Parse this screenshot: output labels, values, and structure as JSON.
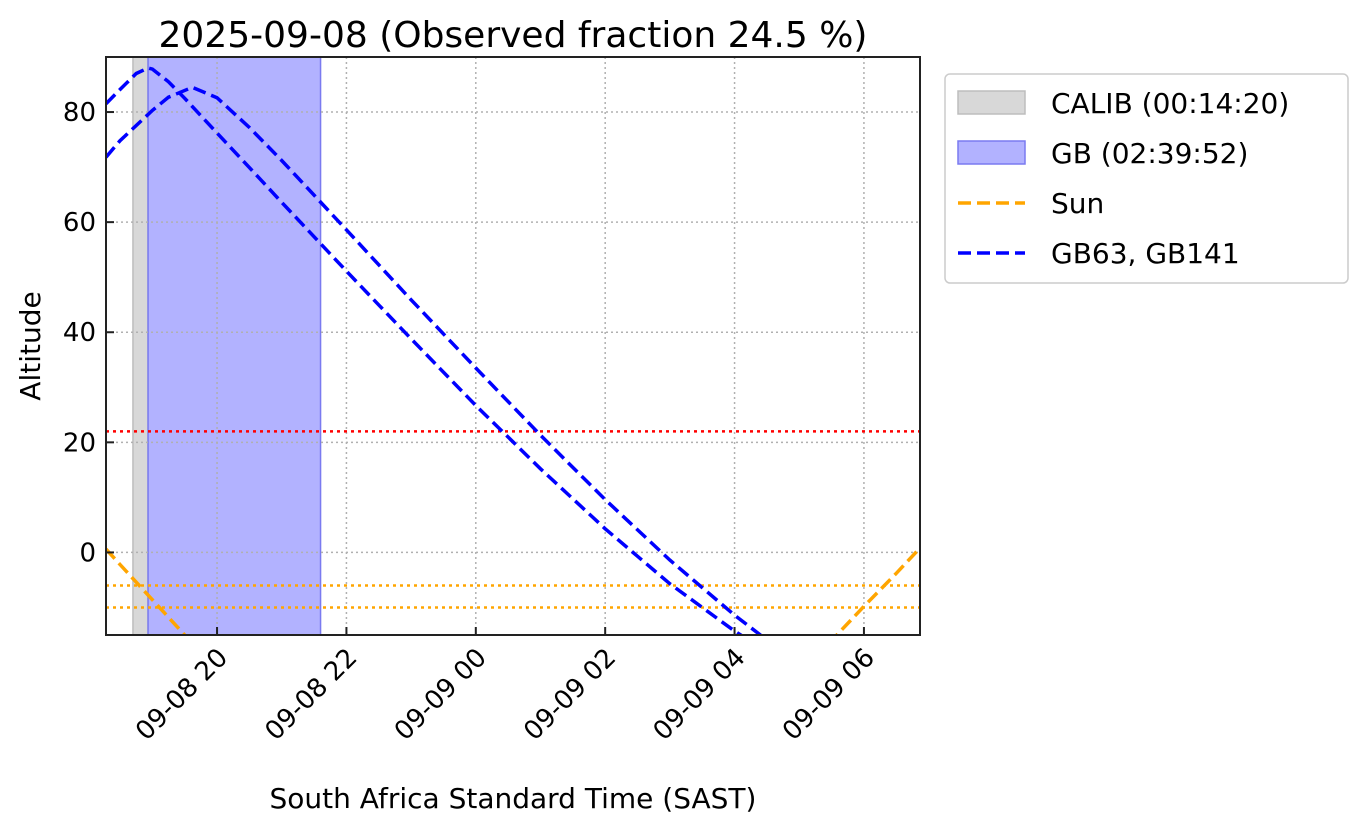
{
  "chart_data": {
    "type": "line",
    "title": "2025-09-08 (Observed fraction 24.5 %)",
    "xlabel": "South Africa Standard Time (SAST)",
    "ylabel": "Altitude",
    "xlim": [
      "2025-09-08 18:17",
      "2025-09-09 06:52"
    ],
    "ylim": [
      -15,
      90
    ],
    "grid": true,
    "legend_position": "outside-top-right",
    "x_ticks": [
      {
        "t": "2025-09-08 20:00",
        "label": "09-08 20"
      },
      {
        "t": "2025-09-08 22:00",
        "label": "09-08 22"
      },
      {
        "t": "2025-09-09 00:00",
        "label": "09-09 00"
      },
      {
        "t": "2025-09-09 02:00",
        "label": "09-09 02"
      },
      {
        "t": "2025-09-09 04:00",
        "label": "09-09 04"
      },
      {
        "t": "2025-09-09 06:00",
        "label": "09-09 06"
      }
    ],
    "y_ticks": [
      0,
      20,
      40,
      60,
      80
    ],
    "spans": [
      {
        "name": "CALIB (00:14:20)",
        "start": "2025-09-08 18:42",
        "end": "2025-09-08 18:56",
        "color": "#d8d8d8",
        "edge": "#bdbdbd"
      },
      {
        "name": "GB (02:39:52)",
        "start": "2025-09-08 18:56",
        "end": "2025-09-08 21:36",
        "color": "#b2b2ff",
        "edge": "#7a7af0"
      }
    ],
    "hlines": [
      {
        "value": 22,
        "color": "#ff0000"
      },
      {
        "value": -6,
        "color": "#ffa500"
      },
      {
        "value": -10,
        "color": "#ffa500"
      }
    ],
    "series": [
      {
        "name": "Sun",
        "color": "#ffa500",
        "segments": [
          [
            [
              "2025-09-08 18:17",
              0.6
            ],
            [
              "2025-09-08 18:30",
              -2.2
            ],
            [
              "2025-09-08 19:00",
              -8.6
            ],
            [
              "2025-09-08 19:30",
              -15.0
            ],
            [
              "2025-09-08 19:45",
              -18.0
            ]
          ],
          [
            [
              "2025-09-09 05:15",
              -19.0
            ],
            [
              "2025-09-09 05:30",
              -16.0
            ],
            [
              "2025-09-09 06:00",
              -9.8
            ],
            [
              "2025-09-09 06:30",
              -3.8
            ],
            [
              "2025-09-09 06:52",
              0.8
            ]
          ]
        ]
      },
      {
        "name": "GB63, GB141",
        "color": "#0000ff",
        "segments": [
          [
            [
              "2025-09-08 18:17",
              81.5
            ],
            [
              "2025-09-08 18:30",
              84.1
            ],
            [
              "2025-09-08 18:45",
              87.0
            ],
            [
              "2025-09-08 18:56",
              88.0
            ],
            [
              "2025-09-08 19:00",
              87.8
            ],
            [
              "2025-09-08 19:15",
              85.5
            ],
            [
              "2025-09-08 19:30",
              82.5
            ],
            [
              "2025-09-08 20:00",
              76.2
            ],
            [
              "2025-09-08 20:30",
              69.9
            ],
            [
              "2025-09-08 21:00",
              63.6
            ],
            [
              "2025-09-08 22:00",
              51.1
            ],
            [
              "2025-09-08 23:00",
              38.8
            ],
            [
              "2025-09-09 00:00",
              26.7
            ],
            [
              "2025-09-09 01:00",
              15.2
            ],
            [
              "2025-09-09 02:00",
              4.3
            ],
            [
              "2025-09-09 03:00",
              -5.7
            ],
            [
              "2025-09-09 04:00",
              -14.3
            ],
            [
              "2025-09-09 04:30",
              -18.0
            ]
          ],
          [
            [
              "2025-09-08 18:17",
              71.8
            ],
            [
              "2025-09-08 18:30",
              74.8
            ],
            [
              "2025-09-08 19:00",
              80.3
            ],
            [
              "2025-09-08 19:15",
              82.7
            ],
            [
              "2025-09-08 19:37",
              84.5
            ],
            [
              "2025-09-08 20:00",
              82.6
            ],
            [
              "2025-09-08 20:30",
              77.2
            ],
            [
              "2025-09-08 21:00",
              71.2
            ],
            [
              "2025-09-08 22:00",
              58.6
            ],
            [
              "2025-09-08 23:00",
              45.9
            ],
            [
              "2025-09-09 00:00",
              33.5
            ],
            [
              "2025-09-09 01:00",
              21.3
            ],
            [
              "2025-09-09 02:00",
              9.6
            ],
            [
              "2025-09-09 03:00",
              -1.4
            ],
            [
              "2025-09-09 04:00",
              -11.4
            ],
            [
              "2025-09-09 04:30",
              -15.9
            ]
          ]
        ]
      }
    ],
    "legend": [
      {
        "label": "CALIB (00:14:20)",
        "kind": "patch",
        "color": "#d8d8d8",
        "edge": "#bdbdbd"
      },
      {
        "label": "GB (02:39:52)",
        "kind": "patch",
        "color": "#b2b2ff",
        "edge": "#7a7af0"
      },
      {
        "label": "Sun",
        "kind": "dashed",
        "color": "#ffa500"
      },
      {
        "label": "GB63, GB141",
        "kind": "dashed",
        "color": "#0000ff"
      }
    ]
  }
}
